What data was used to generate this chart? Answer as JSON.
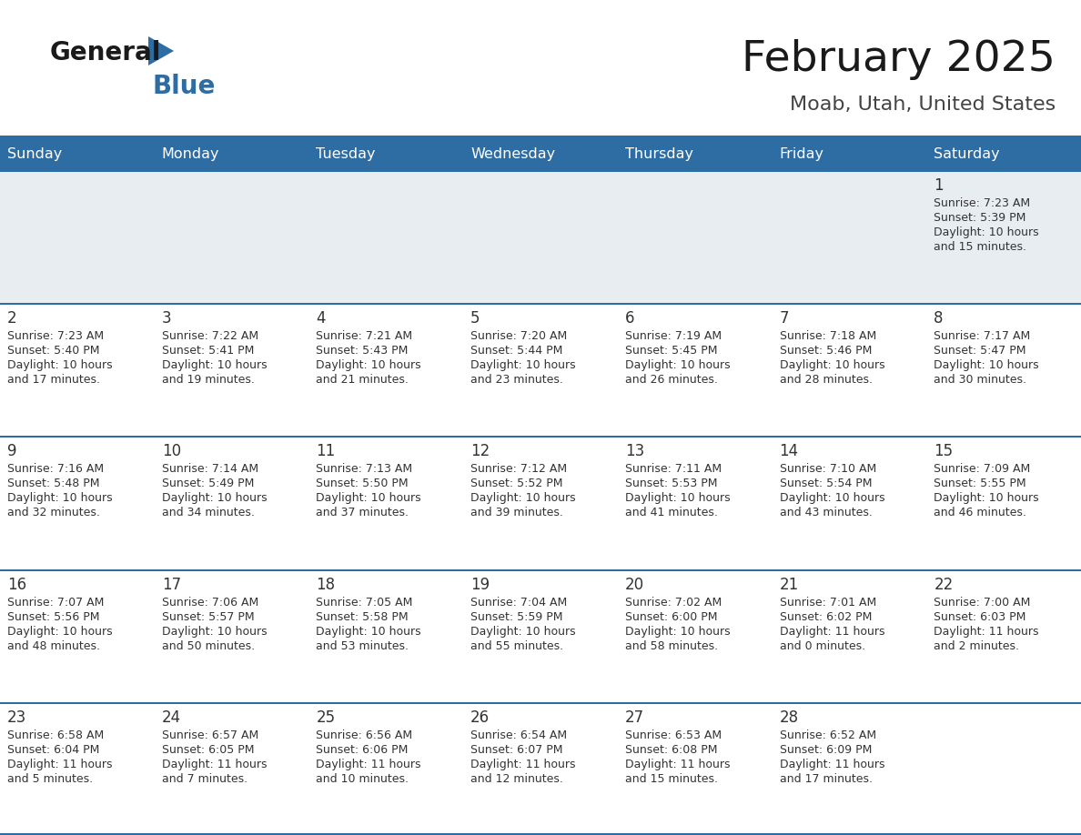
{
  "title": "February 2025",
  "subtitle": "Moab, Utah, United States",
  "days_of_week": [
    "Sunday",
    "Monday",
    "Tuesday",
    "Wednesday",
    "Thursday",
    "Friday",
    "Saturday"
  ],
  "header_bg": "#2e6da4",
  "header_text": "#ffffff",
  "row0_bg": "#e8edf2",
  "cell_bg": "#ffffff",
  "separator_color": "#2e6da4",
  "day_num_color": "#333333",
  "cell_text_color": "#333333",
  "title_color": "#1a1a1a",
  "subtitle_color": "#444444",
  "logo_general_color": "#1a1a1a",
  "logo_blue_color": "#2e6da4",
  "calendar": [
    [
      null,
      null,
      null,
      null,
      null,
      null,
      1
    ],
    [
      2,
      3,
      4,
      5,
      6,
      7,
      8
    ],
    [
      9,
      10,
      11,
      12,
      13,
      14,
      15
    ],
    [
      16,
      17,
      18,
      19,
      20,
      21,
      22
    ],
    [
      23,
      24,
      25,
      26,
      27,
      28,
      null
    ]
  ],
  "cell_data": {
    "1": {
      "sunrise": "7:23 AM",
      "sunset": "5:39 PM",
      "daylight": "10 hours",
      "daylight2": "and 15 minutes."
    },
    "2": {
      "sunrise": "7:23 AM",
      "sunset": "5:40 PM",
      "daylight": "10 hours",
      "daylight2": "and 17 minutes."
    },
    "3": {
      "sunrise": "7:22 AM",
      "sunset": "5:41 PM",
      "daylight": "10 hours",
      "daylight2": "and 19 minutes."
    },
    "4": {
      "sunrise": "7:21 AM",
      "sunset": "5:43 PM",
      "daylight": "10 hours",
      "daylight2": "and 21 minutes."
    },
    "5": {
      "sunrise": "7:20 AM",
      "sunset": "5:44 PM",
      "daylight": "10 hours",
      "daylight2": "and 23 minutes."
    },
    "6": {
      "sunrise": "7:19 AM",
      "sunset": "5:45 PM",
      "daylight": "10 hours",
      "daylight2": "and 26 minutes."
    },
    "7": {
      "sunrise": "7:18 AM",
      "sunset": "5:46 PM",
      "daylight": "10 hours",
      "daylight2": "and 28 minutes."
    },
    "8": {
      "sunrise": "7:17 AM",
      "sunset": "5:47 PM",
      "daylight": "10 hours",
      "daylight2": "and 30 minutes."
    },
    "9": {
      "sunrise": "7:16 AM",
      "sunset": "5:48 PM",
      "daylight": "10 hours",
      "daylight2": "and 32 minutes."
    },
    "10": {
      "sunrise": "7:14 AM",
      "sunset": "5:49 PM",
      "daylight": "10 hours",
      "daylight2": "and 34 minutes."
    },
    "11": {
      "sunrise": "7:13 AM",
      "sunset": "5:50 PM",
      "daylight": "10 hours",
      "daylight2": "and 37 minutes."
    },
    "12": {
      "sunrise": "7:12 AM",
      "sunset": "5:52 PM",
      "daylight": "10 hours",
      "daylight2": "and 39 minutes."
    },
    "13": {
      "sunrise": "7:11 AM",
      "sunset": "5:53 PM",
      "daylight": "10 hours",
      "daylight2": "and 41 minutes."
    },
    "14": {
      "sunrise": "7:10 AM",
      "sunset": "5:54 PM",
      "daylight": "10 hours",
      "daylight2": "and 43 minutes."
    },
    "15": {
      "sunrise": "7:09 AM",
      "sunset": "5:55 PM",
      "daylight": "10 hours",
      "daylight2": "and 46 minutes."
    },
    "16": {
      "sunrise": "7:07 AM",
      "sunset": "5:56 PM",
      "daylight": "10 hours",
      "daylight2": "and 48 minutes."
    },
    "17": {
      "sunrise": "7:06 AM",
      "sunset": "5:57 PM",
      "daylight": "10 hours",
      "daylight2": "and 50 minutes."
    },
    "18": {
      "sunrise": "7:05 AM",
      "sunset": "5:58 PM",
      "daylight": "10 hours",
      "daylight2": "and 53 minutes."
    },
    "19": {
      "sunrise": "7:04 AM",
      "sunset": "5:59 PM",
      "daylight": "10 hours",
      "daylight2": "and 55 minutes."
    },
    "20": {
      "sunrise": "7:02 AM",
      "sunset": "6:00 PM",
      "daylight": "10 hours",
      "daylight2": "and 58 minutes."
    },
    "21": {
      "sunrise": "7:01 AM",
      "sunset": "6:02 PM",
      "daylight": "11 hours",
      "daylight2": "and 0 minutes."
    },
    "22": {
      "sunrise": "7:00 AM",
      "sunset": "6:03 PM",
      "daylight": "11 hours",
      "daylight2": "and 2 minutes."
    },
    "23": {
      "sunrise": "6:58 AM",
      "sunset": "6:04 PM",
      "daylight": "11 hours",
      "daylight2": "and 5 minutes."
    },
    "24": {
      "sunrise": "6:57 AM",
      "sunset": "6:05 PM",
      "daylight": "11 hours",
      "daylight2": "and 7 minutes."
    },
    "25": {
      "sunrise": "6:56 AM",
      "sunset": "6:06 PM",
      "daylight": "11 hours",
      "daylight2": "and 10 minutes."
    },
    "26": {
      "sunrise": "6:54 AM",
      "sunset": "6:07 PM",
      "daylight": "11 hours",
      "daylight2": "and 12 minutes."
    },
    "27": {
      "sunrise": "6:53 AM",
      "sunset": "6:08 PM",
      "daylight": "11 hours",
      "daylight2": "and 15 minutes."
    },
    "28": {
      "sunrise": "6:52 AM",
      "sunset": "6:09 PM",
      "daylight": "11 hours",
      "daylight2": "and 17 minutes."
    }
  }
}
